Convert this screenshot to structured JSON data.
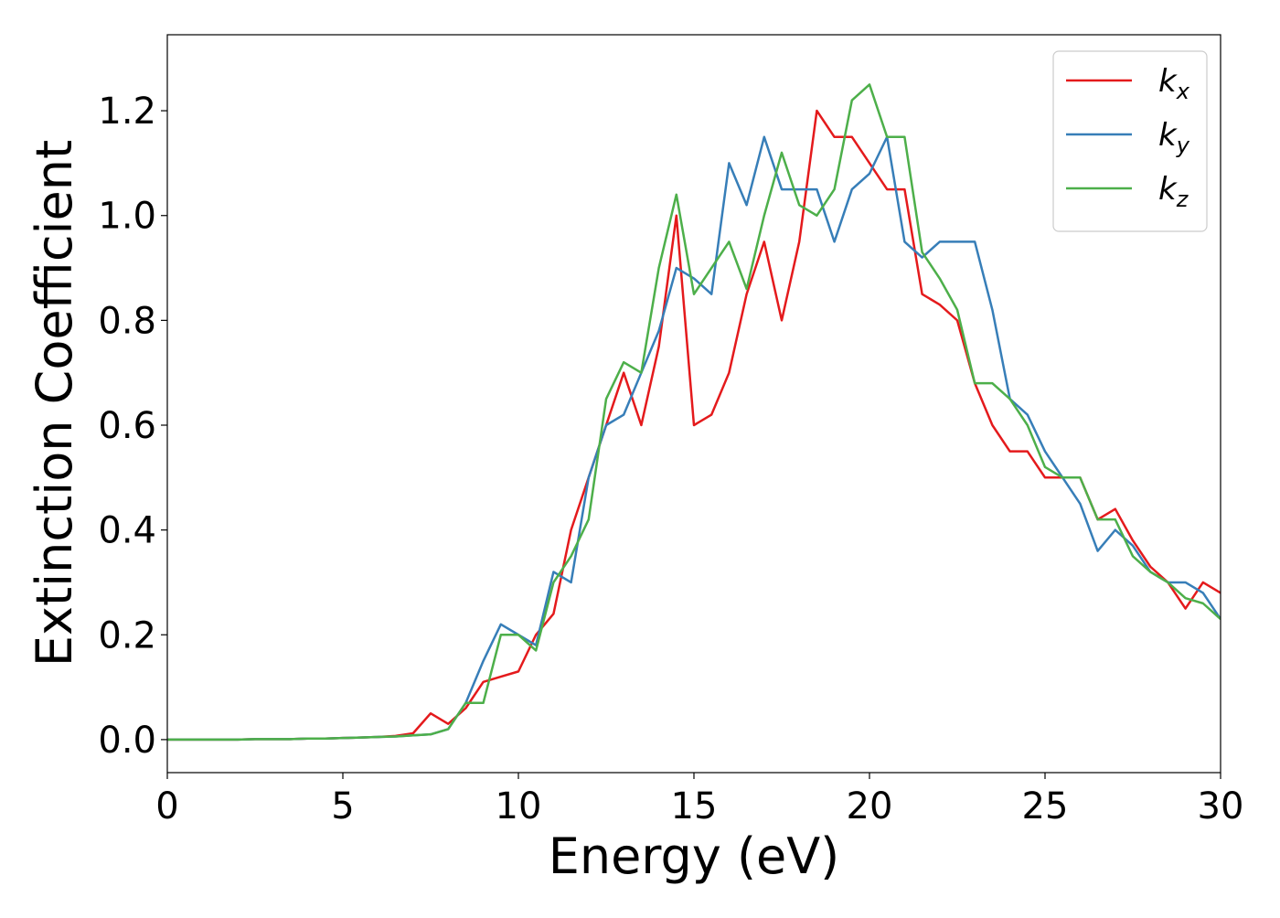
{
  "chart_data": {
    "type": "line",
    "x_label": "Energy (eV)",
    "y_label": "Extinction Coefficient",
    "x": [
      0,
      0.5,
      1,
      1.5,
      2,
      2.5,
      3,
      3.5,
      4,
      4.5,
      5,
      5.5,
      6,
      6.5,
      7,
      7.5,
      8,
      8.5,
      9,
      9.5,
      10,
      10.5,
      11,
      11.5,
      12,
      12.5,
      13,
      13.5,
      14,
      14.5,
      15,
      15.5,
      16,
      16.5,
      17,
      17.5,
      18,
      18.5,
      19,
      19.5,
      20,
      20.5,
      21,
      21.5,
      22,
      22.5,
      23,
      23.5,
      24,
      24.5,
      25,
      25.5,
      26,
      26.5,
      27,
      27.5,
      28,
      28.5,
      29,
      29.5,
      30
    ],
    "series": [
      {
        "name": "kx",
        "color": "#e41a1c",
        "values": [
          0,
          0,
          0,
          0,
          0,
          0.001,
          0.001,
          0.001,
          0.002,
          0.002,
          0.003,
          0.004,
          0.005,
          0.007,
          0.012,
          0.05,
          0.03,
          0.06,
          0.11,
          0.12,
          0.13,
          0.2,
          0.24,
          0.4,
          0.5,
          0.6,
          0.7,
          0.6,
          0.75,
          1.0,
          0.6,
          0.62,
          0.7,
          0.85,
          0.95,
          0.8,
          0.95,
          1.2,
          1.15,
          1.15,
          1.1,
          1.05,
          1.05,
          0.85,
          0.83,
          0.8,
          0.68,
          0.6,
          0.55,
          0.55,
          0.5,
          0.5,
          0.5,
          0.42,
          0.44,
          0.38,
          0.33,
          0.3,
          0.25,
          0.3,
          0.28
        ]
      },
      {
        "name": "ky",
        "color": "#377eb8",
        "values": [
          0,
          0,
          0,
          0,
          0,
          0.001,
          0.001,
          0.001,
          0.002,
          0.002,
          0.003,
          0.004,
          0.005,
          0.006,
          0.008,
          0.01,
          0.02,
          0.07,
          0.15,
          0.22,
          0.2,
          0.18,
          0.32,
          0.3,
          0.5,
          0.6,
          0.62,
          0.7,
          0.78,
          0.9,
          0.88,
          0.85,
          1.1,
          1.02,
          1.15,
          1.05,
          1.05,
          1.05,
          0.95,
          1.05,
          1.08,
          1.15,
          0.95,
          0.92,
          0.95,
          0.95,
          0.95,
          0.82,
          0.65,
          0.62,
          0.55,
          0.5,
          0.45,
          0.36,
          0.4,
          0.37,
          0.32,
          0.3,
          0.3,
          0.28,
          0.23
        ]
      },
      {
        "name": "kz",
        "color": "#4daf4a",
        "values": [
          0,
          0,
          0,
          0,
          0,
          0.001,
          0.001,
          0.001,
          0.002,
          0.002,
          0.003,
          0.004,
          0.005,
          0.006,
          0.008,
          0.01,
          0.02,
          0.07,
          0.07,
          0.2,
          0.2,
          0.17,
          0.3,
          0.35,
          0.42,
          0.65,
          0.72,
          0.7,
          0.9,
          1.04,
          0.85,
          0.9,
          0.95,
          0.86,
          1.0,
          1.12,
          1.02,
          1.0,
          1.05,
          1.22,
          1.25,
          1.15,
          1.15,
          0.93,
          0.88,
          0.82,
          0.68,
          0.68,
          0.65,
          0.6,
          0.52,
          0.5,
          0.5,
          0.42,
          0.42,
          0.35,
          0.32,
          0.3,
          0.27,
          0.26,
          0.23
        ]
      }
    ],
    "xlim": [
      0,
      30
    ],
    "xticks": [
      0,
      5,
      10,
      15,
      20,
      25,
      30
    ],
    "ylim": [
      -0.063,
      1.345
    ],
    "yticks": [
      {
        "value": 0,
        "label": "0.0"
      },
      0.2,
      0.4,
      0.6,
      0.8,
      {
        "value": 1,
        "label": "1.0"
      },
      1.2
    ],
    "grid": false,
    "legend": "upper right"
  }
}
